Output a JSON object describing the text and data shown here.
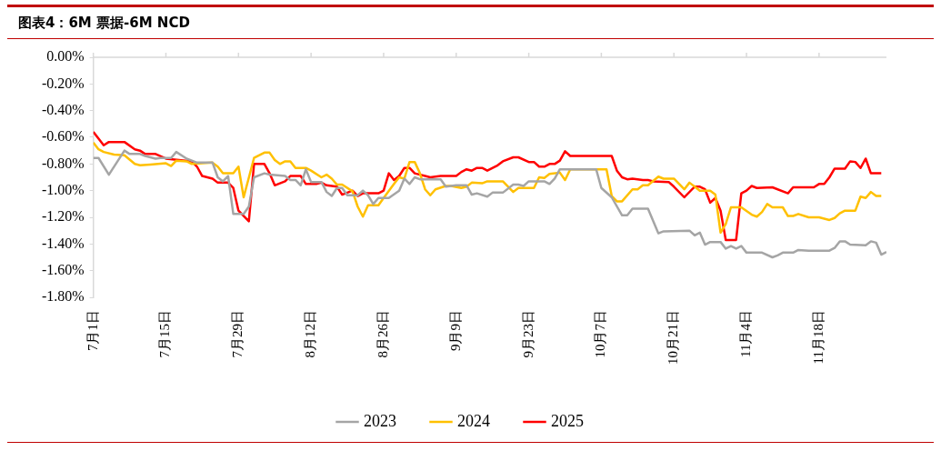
{
  "chart_data": {
    "type": "line",
    "title": "图表4：6M 票据-6M NCD",
    "legend": "bottom",
    "marker": "none",
    "xlim": [
      "--07-01",
      "--12-01"
    ],
    "xticks": [
      {
        "value": "--07-01",
        "label": "7月1日"
      },
      {
        "value": "--07-15",
        "label": "7月15日"
      },
      {
        "value": "--07-29",
        "label": "7月29日"
      },
      {
        "value": "--08-12",
        "label": "8月12日"
      },
      {
        "value": "--08-26",
        "label": "8月26日"
      },
      {
        "value": "--09-09",
        "label": "9月9日"
      },
      {
        "value": "--09-23",
        "label": "9月23日"
      },
      {
        "value": "--10-07",
        "label": "10月7日"
      },
      {
        "value": "--10-21",
        "label": "10月21日"
      },
      {
        "value": "--11-04",
        "label": "11月4日"
      },
      {
        "value": "--11-18",
        "label": "11月18日"
      }
    ],
    "ylim": [
      -1.8,
      0
    ],
    "yticks": [
      {
        "value": 0,
        "label": "0.00%"
      },
      {
        "value": -0.2,
        "label": "-0.20%"
      },
      {
        "value": -0.4,
        "label": "-0.40%"
      },
      {
        "value": -0.6,
        "label": "-0.60%"
      },
      {
        "value": -0.8,
        "label": "-0.80%"
      },
      {
        "value": -1.0,
        "label": "-1.00%"
      },
      {
        "value": -1.2,
        "label": "-1.20%"
      },
      {
        "value": -1.4,
        "label": "-1.40%"
      },
      {
        "value": -1.6,
        "label": "-1.60%"
      },
      {
        "value": -1.8,
        "label": "-1.80%"
      }
    ],
    "series": [
      {
        "name": "2023",
        "color": "#a5a5a5",
        "x": [
          "--07-01",
          "--07-02",
          "--07-04",
          "--07-07",
          "--07-08",
          "--07-10",
          "--07-11",
          "--07-13",
          "--07-14",
          "--07-16",
          "--07-17",
          "--07-19",
          "--07-21",
          "--07-24",
          "--07-25",
          "--07-26",
          "--07-27",
          "--07-28",
          "--07-30",
          "--07-31",
          "--08-01",
          "--08-03",
          "--08-04",
          "--08-07",
          "--08-08",
          "--08-09",
          "--08-10",
          "--08-11",
          "--08-12",
          "--08-14",
          "--08-15",
          "--08-16",
          "--08-17",
          "--08-18",
          "--08-19",
          "--08-21",
          "--08-22",
          "--08-23",
          "--08-24",
          "--08-25",
          "--08-27",
          "--08-29",
          "--08-30",
          "--08-31",
          "--09-01",
          "--09-02",
          "--09-06",
          "--09-07",
          "--09-09",
          "--09-11",
          "--09-12",
          "--09-13",
          "--09-15",
          "--09-16",
          "--09-18",
          "--09-20",
          "--09-21",
          "--09-22",
          "--09-23",
          "--09-26",
          "--09-27",
          "--09-28",
          "--09-29",
          "--10-06",
          "--10-07",
          "--10-09",
          "--10-11",
          "--10-12",
          "--10-13",
          "--10-16",
          "--10-18",
          "--10-19",
          "--10-24",
          "--10-25",
          "--10-26",
          "--10-27",
          "--10-28",
          "--10-30",
          "--10-31",
          "--11-01",
          "--11-02",
          "--11-03",
          "--11-04",
          "--11-07",
          "--11-09",
          "--11-10",
          "--11-11",
          "--11-13",
          "--11-14",
          "--11-16",
          "--11-20",
          "--11-21",
          "--11-22",
          "--11-23",
          "--11-24",
          "--11-27",
          "--11-28",
          "--11-29",
          "--11-30",
          "--12-01"
        ],
        "values": [
          -0.755,
          -0.755,
          -0.88,
          -0.7,
          -0.725,
          -0.725,
          -0.74,
          -0.76,
          -0.755,
          -0.755,
          -0.71,
          -0.76,
          -0.79,
          -0.79,
          -0.9,
          -0.93,
          -0.89,
          -1.175,
          -1.175,
          -1.12,
          -0.9,
          -0.87,
          -0.88,
          -0.89,
          -0.92,
          -0.92,
          -0.96,
          -0.84,
          -0.935,
          -0.935,
          -1.01,
          -1.04,
          -0.98,
          -0.98,
          -1.035,
          -1.035,
          -1.0,
          -1.035,
          -1.1,
          -1.055,
          -1.055,
          -1.0,
          -0.91,
          -0.95,
          -0.9,
          -0.915,
          -0.915,
          -0.97,
          -0.96,
          -0.96,
          -1.03,
          -1.02,
          -1.045,
          -1.015,
          -1.015,
          -0.955,
          -0.955,
          -0.965,
          -0.93,
          -0.93,
          -0.95,
          -0.91,
          -0.84,
          -0.84,
          -0.98,
          -1.05,
          -1.185,
          -1.185,
          -1.135,
          -1.135,
          -1.32,
          -1.305,
          -1.3,
          -1.335,
          -1.315,
          -1.405,
          -1.385,
          -1.385,
          -1.435,
          -1.415,
          -1.435,
          -1.415,
          -1.465,
          -1.465,
          -1.5,
          -1.485,
          -1.465,
          -1.465,
          -1.445,
          -1.45,
          -1.45,
          -1.43,
          -1.38,
          -1.38,
          -1.405,
          -1.41,
          -1.38,
          -1.39,
          -1.48,
          -1.46
        ]
      },
      {
        "name": "2024",
        "color": "#ffc000",
        "x": [
          "--07-01",
          "--07-02",
          "--07-03",
          "--07-05",
          "--07-07",
          "--07-09",
          "--07-10",
          "--07-12",
          "--07-15",
          "--07-16",
          "--07-17",
          "--07-19",
          "--07-20",
          "--07-24",
          "--07-25",
          "--07-26",
          "--07-28",
          "--07-29",
          "--07-30",
          "--08-01",
          "--08-03",
          "--08-04",
          "--08-05",
          "--08-06",
          "--08-07",
          "--08-08",
          "--08-09",
          "--08-11",
          "--08-12",
          "--08-14",
          "--08-15",
          "--08-16",
          "--08-17",
          "--08-18",
          "--08-20",
          "--08-21",
          "--08-22",
          "--08-23",
          "--08-25",
          "--08-26",
          "--08-28",
          "--08-29",
          "--08-30",
          "--08-31",
          "--09-01",
          "--09-02",
          "--09-03",
          "--09-04",
          "--09-05",
          "--09-07",
          "--09-08",
          "--09-10",
          "--09-11",
          "--09-12",
          "--09-14",
          "--09-15",
          "--09-18",
          "--09-20",
          "--09-21",
          "--09-24",
          "--09-25",
          "--09-26",
          "--09-27",
          "--09-29",
          "--09-30",
          "--10-01",
          "--10-08",
          "--10-09",
          "--10-10",
          "--10-11",
          "--10-13",
          "--10-14",
          "--10-15",
          "--10-16",
          "--10-18",
          "--10-19",
          "--10-21",
          "--10-23",
          "--10-24",
          "--10-26",
          "--10-28",
          "--10-29",
          "--10-30",
          "--10-31",
          "--11-01",
          "--11-03",
          "--11-05",
          "--11-06",
          "--11-07",
          "--11-08",
          "--11-09",
          "--11-11",
          "--11-12",
          "--11-13",
          "--11-14",
          "--11-16",
          "--11-18",
          "--11-20",
          "--11-21",
          "--11-22",
          "--11-23",
          "--11-25",
          "--11-26",
          "--11-27",
          "--11-28",
          "--11-29",
          "--11-30"
        ],
        "values": [
          -0.64,
          -0.69,
          -0.71,
          -0.73,
          -0.735,
          -0.8,
          -0.81,
          -0.805,
          -0.795,
          -0.815,
          -0.775,
          -0.78,
          -0.8,
          -0.79,
          -0.82,
          -0.87,
          -0.87,
          -0.82,
          -1.05,
          -0.755,
          -0.715,
          -0.715,
          -0.77,
          -0.8,
          -0.78,
          -0.78,
          -0.83,
          -0.83,
          -0.85,
          -0.9,
          -0.88,
          -0.91,
          -0.955,
          -0.955,
          -1.005,
          -1.12,
          -1.195,
          -1.11,
          -1.11,
          -1.055,
          -0.95,
          -0.9,
          -0.91,
          -0.785,
          -0.785,
          -0.87,
          -0.99,
          -1.035,
          -0.99,
          -0.965,
          -0.965,
          -0.98,
          -0.97,
          -0.94,
          -0.945,
          -0.93,
          -0.93,
          -1.01,
          -0.98,
          -0.98,
          -0.9,
          -0.905,
          -0.875,
          -0.865,
          -0.92,
          -0.84,
          -0.84,
          -1.04,
          -1.08,
          -1.08,
          -0.99,
          -0.99,
          -0.96,
          -0.96,
          -0.895,
          -0.91,
          -0.91,
          -0.99,
          -0.94,
          -1.0,
          -1.0,
          -1.03,
          -1.315,
          -1.25,
          -1.125,
          -1.125,
          -1.18,
          -1.195,
          -1.16,
          -1.1,
          -1.125,
          -1.125,
          -1.19,
          -1.19,
          -1.175,
          -1.2,
          -1.2,
          -1.22,
          -1.205,
          -1.17,
          -1.15,
          -1.15,
          -1.045,
          -1.055,
          -1.01,
          -1.04,
          -1.04
        ]
      },
      {
        "name": "2025",
        "color": "#ff0000",
        "x": [
          "--07-01",
          "--07-03",
          "--07-04",
          "--07-07",
          "--07-09",
          "--07-10",
          "--07-11",
          "--07-13",
          "--07-15",
          "--07-20",
          "--07-21",
          "--07-22",
          "--07-24",
          "--07-25",
          "--07-27",
          "--07-28",
          "--07-29",
          "--07-31",
          "--08-01",
          "--08-03",
          "--08-04",
          "--08-05",
          "--08-07",
          "--08-08",
          "--08-10",
          "--08-11",
          "--08-13",
          "--08-14",
          "--08-15",
          "--08-17",
          "--08-18",
          "--08-20",
          "--08-21",
          "--08-22",
          "--08-25",
          "--08-26",
          "--08-27",
          "--08-28",
          "--08-29",
          "--08-30",
          "--08-31",
          "--09-01",
          "--09-03",
          "--09-04",
          "--09-06",
          "--09-07",
          "--09-09",
          "--09-10",
          "--09-11",
          "--09-12",
          "--09-13",
          "--09-14",
          "--09-15",
          "--09-17",
          "--09-18",
          "--09-20",
          "--09-21",
          "--09-23",
          "--09-24",
          "--09-25",
          "--09-26",
          "--09-27",
          "--09-28",
          "--09-29",
          "--09-30",
          "--10-01",
          "--10-09",
          "--10-10",
          "--10-11",
          "--10-12",
          "--10-13",
          "--10-15",
          "--10-16",
          "--10-17",
          "--10-20",
          "--10-21",
          "--10-23",
          "--10-25",
          "--10-26",
          "--10-27",
          "--10-28",
          "--10-29",
          "--10-30",
          "--10-31",
          "--11-02",
          "--11-03",
          "--11-04",
          "--11-05",
          "--11-06",
          "--11-09",
          "--11-12",
          "--11-13",
          "--11-17",
          "--11-18",
          "--11-19",
          "--11-20",
          "--11-21",
          "--11-23",
          "--11-24",
          "--11-25",
          "--11-26",
          "--11-27",
          "--11-28",
          "--11-30"
        ],
        "values": [
          -0.56,
          -0.66,
          -0.635,
          -0.635,
          -0.69,
          -0.7,
          -0.725,
          -0.725,
          -0.76,
          -0.78,
          -0.82,
          -0.89,
          -0.91,
          -0.94,
          -0.94,
          -0.98,
          -1.15,
          -1.23,
          -0.8,
          -0.8,
          -0.87,
          -0.96,
          -0.93,
          -0.89,
          -0.89,
          -0.95,
          -0.95,
          -0.94,
          -0.96,
          -0.97,
          -1.03,
          -1.0,
          -1.04,
          -1.02,
          -1.02,
          -1.0,
          -0.87,
          -0.92,
          -0.89,
          -0.83,
          -0.83,
          -0.87,
          -0.89,
          -0.9,
          -0.89,
          -0.89,
          -0.89,
          -0.86,
          -0.84,
          -0.85,
          -0.83,
          -0.83,
          -0.85,
          -0.81,
          -0.78,
          -0.75,
          -0.75,
          -0.785,
          -0.785,
          -0.82,
          -0.82,
          -0.8,
          -0.8,
          -0.775,
          -0.705,
          -0.74,
          -0.74,
          -0.85,
          -0.9,
          -0.915,
          -0.91,
          -0.92,
          -0.92,
          -0.93,
          -0.935,
          -0.97,
          -1.05,
          -0.97,
          -0.97,
          -0.99,
          -1.09,
          -1.055,
          -1.15,
          -1.37,
          -1.37,
          -1.02,
          -1.0,
          -0.965,
          -0.98,
          -0.975,
          -1.02,
          -0.975,
          -0.975,
          -0.95,
          -0.95,
          -0.9,
          -0.835,
          -0.835,
          -0.78,
          -0.785,
          -0.83,
          -0.76,
          -0.87,
          -0.87
        ]
      }
    ]
  }
}
